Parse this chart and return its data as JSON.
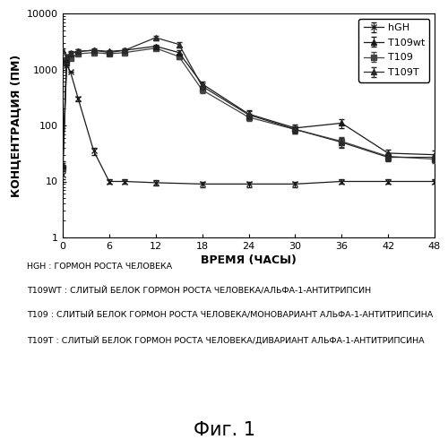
{
  "xlabel": "ВРЕМЯ (ЧАСЫ)",
  "ylabel": "КОНЦЕНТРАЦИЯ (ПМ)",
  "xlim": [
    0,
    48
  ],
  "ylim": [
    1,
    10000
  ],
  "xticks": [
    0,
    6,
    12,
    18,
    24,
    30,
    36,
    42,
    48
  ],
  "hGH_x": [
    0,
    0.5,
    1,
    2,
    4,
    6,
    8,
    12,
    18,
    24,
    30,
    36,
    42,
    48
  ],
  "hGH_y": [
    13,
    1200,
    900,
    300,
    35,
    10,
    10,
    9.5,
    9,
    9,
    9,
    10,
    10,
    10
  ],
  "hGH_ye": [
    2,
    0,
    0,
    30,
    5,
    1,
    1,
    1,
    1,
    1,
    1,
    1,
    1,
    1
  ],
  "t109wt_x": [
    0,
    0.5,
    1,
    2,
    4,
    6,
    8,
    12,
    15,
    18,
    24,
    30,
    36,
    42,
    48
  ],
  "t109wt_y": [
    20,
    1500,
    1900,
    2100,
    2200,
    2100,
    2200,
    2600,
    2000,
    550,
    160,
    90,
    110,
    32,
    30
  ],
  "t109wt_ye": [
    3,
    120,
    150,
    150,
    130,
    130,
    130,
    200,
    180,
    60,
    25,
    15,
    20,
    5,
    5
  ],
  "t109_x": [
    0,
    0.5,
    1,
    2,
    4,
    6,
    8,
    12,
    15,
    18,
    24,
    30,
    36,
    42,
    48
  ],
  "t109_y": [
    18,
    1300,
    1600,
    1900,
    2000,
    1900,
    2000,
    2400,
    1700,
    430,
    140,
    85,
    52,
    28,
    25
  ],
  "t109_ye": [
    3,
    100,
    130,
    130,
    120,
    120,
    120,
    170,
    150,
    50,
    20,
    13,
    10,
    4,
    4
  ],
  "t109T_x": [
    0,
    0.5,
    1,
    2,
    4,
    6,
    8,
    12,
    15,
    18,
    24,
    30,
    36,
    42,
    48
  ],
  "t109T_y": [
    2200,
    1700,
    2000,
    2100,
    2200,
    2000,
    2200,
    3700,
    2800,
    500,
    155,
    85,
    50,
    27,
    27
  ],
  "t109T_ye": [
    200,
    140,
    160,
    160,
    150,
    150,
    150,
    350,
    300,
    60,
    25,
    12,
    10,
    4,
    4
  ],
  "annotation_lines": [
    "HGH : ГОРМОН РОСТА ЧЕЛОВЕКА",
    "T109WT : СЛИТЫЙ БЕЛОК ГОРМОН РОСТА ЧЕЛОВЕКА/АЛЬФА-1-АНТИТРИПСИН",
    "T109 : СЛИТЫЙ БЕЛОК ГОРМОН РОСТА ЧЕЛОВЕКА/МОНОВАРИАНТ АЛЬФА-1-АНТИТРИПСИНА",
    "T109T : СЛИТЫЙ БЕЛОК ГОРМОН РОСТА ЧЕЛОВЕКА/ДИВАРИАНТ АЛЬФА-1-АНТИТРИПСИНА"
  ],
  "fig_caption": "Фиг. 1",
  "background_color": "#ffffff"
}
